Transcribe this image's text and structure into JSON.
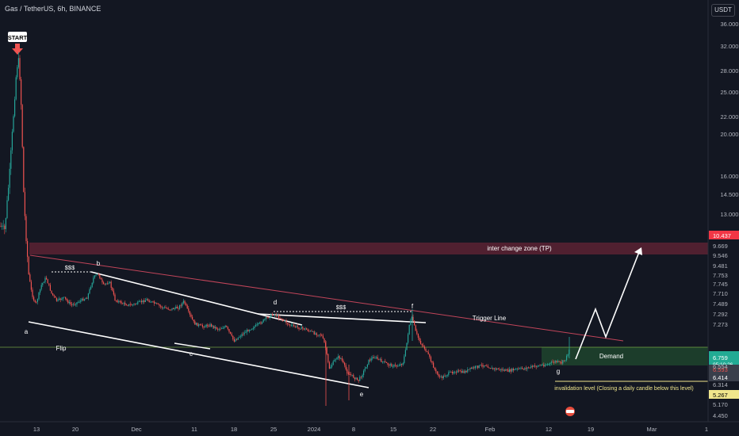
{
  "header": {
    "title": "Gas / TetherUS, 6h, BINANCE",
    "currency": "USDT"
  },
  "colors": {
    "background": "#131722",
    "up": "#26a69a",
    "down": "#ef5350",
    "tp_zone": "#5c2232",
    "demand_zone": "#1c3d2b",
    "flip_line": "#8bc34a",
    "trigger_line": "#c2455a",
    "invalidation_line": "#f0e68c",
    "annotation": "#ffffff"
  },
  "chart_data": {
    "type": "candlestick",
    "title": "Gas / TetherUS, 6h, BINANCE",
    "y_scale": "log",
    "x_ticks": [
      "13",
      "20",
      "Dec",
      "11",
      "18",
      "25",
      "2024",
      "8",
      "15",
      "22",
      "Feb",
      "12",
      "19",
      "Mar",
      "1"
    ],
    "y_ticks": [
      36.0,
      32.0,
      28.0,
      25.0,
      22.0,
      20.0,
      16.0,
      14.5,
      13.0
    ],
    "price_labels": [
      {
        "value": "10.437",
        "kind": "red-box"
      },
      {
        "value": "9.669",
        "kind": "text"
      },
      {
        "value": "9.546",
        "kind": "text"
      },
      {
        "value": "9.481",
        "kind": "text"
      },
      {
        "value": "7.753",
        "kind": "text"
      },
      {
        "value": "7.745",
        "kind": "text"
      },
      {
        "value": "7.710",
        "kind": "text"
      },
      {
        "value": "7.489",
        "kind": "text"
      },
      {
        "value": "7.292",
        "kind": "text"
      },
      {
        "value": "7.273",
        "kind": "text"
      },
      {
        "value": "6.759",
        "kind": "green-box",
        "countdown": "05:10:26"
      },
      {
        "value": "6.593",
        "kind": "dark-box"
      },
      {
        "value": "6.554",
        "kind": "text"
      },
      {
        "value": "6.414",
        "kind": "dark-box"
      },
      {
        "value": "6.314",
        "kind": "text"
      },
      {
        "value": "5.267",
        "kind": "yellow-box"
      },
      {
        "value": "5.170",
        "kind": "text"
      },
      {
        "value": "4.450",
        "kind": "text"
      }
    ],
    "annotations": {
      "start": "START",
      "tp_zone": "inter change zone (TP)",
      "trigger": "Trigger Line",
      "flip": "Flip",
      "demand": "Demand",
      "invalidation": "invalidation level (Closing a daily candle below this level)",
      "liquidity_1": "$$$",
      "liquidity_2": "$$$",
      "wave_points": [
        "a",
        "b",
        "c",
        "d",
        "e",
        "f",
        "g"
      ]
    },
    "approx_price_path": [
      {
        "x": "13 Nov",
        "price": 30.0
      },
      {
        "x": "15 Nov",
        "price": 9.5
      },
      {
        "x": "22 Nov",
        "price": 8.6
      },
      {
        "x": "Dec",
        "price": 8.3
      },
      {
        "x": "11 Dec",
        "price": 7.3
      },
      {
        "x": "25 Dec",
        "price": 7.1
      },
      {
        "x": "8 Jan",
        "price": 5.4
      },
      {
        "x": "18 Jan",
        "price": 7.3
      },
      {
        "x": "Feb",
        "price": 6.2
      },
      {
        "x": "12 Feb",
        "price": 6.4
      },
      {
        "x": "15 Feb",
        "price": 6.76
      }
    ]
  }
}
